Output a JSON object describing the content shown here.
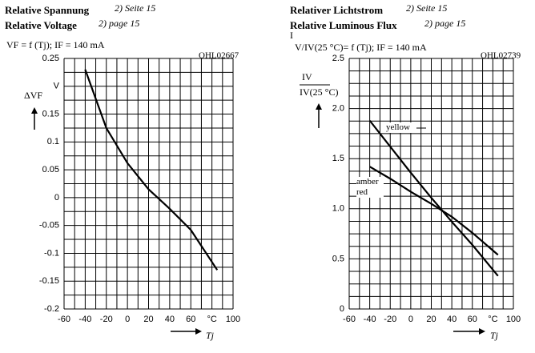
{
  "chart_data": [
    {
      "type": "line",
      "title": "Relative Spannung",
      "title_ref": "2) Seite 15",
      "title_en": "Relative Voltage",
      "title_en_ref": "2) page 15",
      "formula": "VF = f (Tj); IF = 140 mA",
      "code": "OHL02667",
      "ylabel": "ΔVF",
      "xlabel": "Tj",
      "x": [
        -40,
        -20,
        0,
        20,
        40,
        60,
        85
      ],
      "series": [
        {
          "name": "",
          "color": "#000000",
          "values": [
            0.23,
            0.125,
            0.062,
            0.015,
            -0.02,
            -0.058,
            -0.13
          ]
        }
      ],
      "xlim": [
        -60,
        100
      ],
      "xticks": [
        -60,
        -40,
        -20,
        0,
        20,
        40,
        60,
        {
          "value": 80,
          "label": "°C"
        },
        100
      ],
      "ylim": [
        -0.2,
        0.25
      ],
      "yticks": [
        -0.2,
        -0.15,
        -0.1,
        -0.05,
        0,
        0.05,
        0.1,
        0.15,
        {
          "value": 0.2,
          "label": "V"
        },
        0.25
      ],
      "grid": true
    },
    {
      "type": "line",
      "title": "Relativer Lichtstrom",
      "title_ref": "2) Seite 15",
      "title_en": "Relative Luminous Flux",
      "title_en_ref": "2) page 15",
      "formula_prefix": "I",
      "formula": "V/IV(25 °C)= f (Tj); IF = 140 mA",
      "code": "OHL02739",
      "ylabel_top": "IV",
      "ylabel_bottom": "IV(25 °C)",
      "xlabel": "Tj",
      "x": [
        -40,
        -20,
        0,
        20,
        40,
        60,
        85
      ],
      "series": [
        {
          "name": "yellow",
          "color": "#000000",
          "values": [
            1.88,
            1.62,
            1.36,
            1.11,
            0.87,
            0.64,
            0.33
          ]
        },
        {
          "name": "amber red",
          "color": "#000000",
          "values": [
            1.42,
            1.3,
            1.17,
            1.05,
            0.92,
            0.76,
            0.54
          ]
        }
      ],
      "xlim": [
        -60,
        100
      ],
      "xticks": [
        -60,
        -40,
        -20,
        0,
        20,
        40,
        60,
        {
          "value": 80,
          "label": "°C"
        },
        100
      ],
      "ylim": [
        0,
        2.5
      ],
      "yticks": [
        0,
        0.5,
        {
          "value": 1,
          "label": "1.0"
        },
        1.5,
        {
          "value": 2,
          "label": "2.0"
        },
        2.5
      ],
      "grid": true
    }
  ]
}
